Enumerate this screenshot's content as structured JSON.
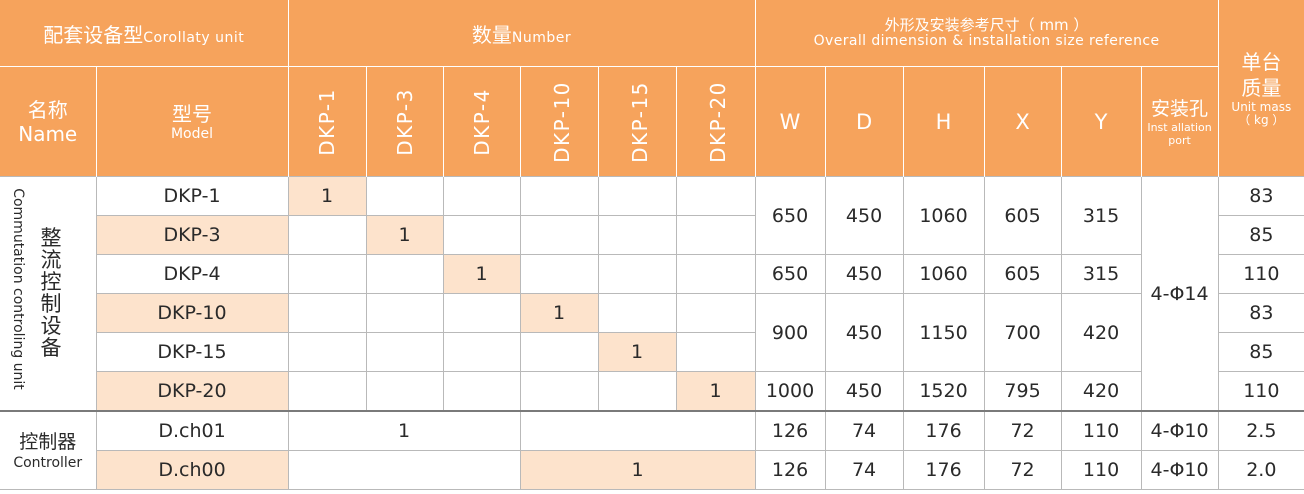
{
  "header": {
    "group_equipment": {
      "cn": "配套设备型",
      "en": "Corollaty unit"
    },
    "group_quantity": {
      "cn": "数量",
      "en": "Number"
    },
    "group_dimension": {
      "cn": "外形及安装参考尺寸（ mm ）",
      "en": "Overall dimension & installation size reference"
    },
    "unit_mass": {
      "cn": "单台质量",
      "en": "Unit mass",
      "unit": "（ kg ）"
    },
    "name": {
      "cn": "名称",
      "en": "Name"
    },
    "model": {
      "cn": "型号",
      "en": "Model"
    },
    "quantity_columns": [
      "DKP-1",
      "DKP-3",
      "DKP-4",
      "DKP-10",
      "DKP-15",
      "DKP-20"
    ],
    "dimension_columns": [
      "W",
      "D",
      "H",
      "X",
      "Y"
    ],
    "install_port": {
      "cn": "安装孔",
      "en": "Inst allation port"
    }
  },
  "category_rectifier": {
    "cn": "整流控制设备",
    "en": "Commutation controling unit"
  },
  "category_controller": {
    "cn": "控制器",
    "en": "Controller"
  },
  "rows": [
    {
      "model": "DKP-1",
      "quantity": "1",
      "mass": "83"
    },
    {
      "model": "DKP-3",
      "quantity": "1",
      "mass": "85"
    },
    {
      "model": "DKP-4",
      "quantity": "1",
      "mass": "110"
    },
    {
      "model": "DKP-10",
      "quantity": "1",
      "mass": "83"
    },
    {
      "model": "DKP-15",
      "quantity": "1",
      "mass": "85"
    },
    {
      "model": "DKP-20",
      "quantity": "1",
      "mass": "110"
    },
    {
      "model": "D.ch01",
      "quantity": "1",
      "mass": "2.5"
    },
    {
      "model": "D.ch00",
      "quantity": "1",
      "mass": "2.0"
    }
  ],
  "dimension_groups": [
    {
      "W": "650",
      "D": "450",
      "H": "1060",
      "X": "605",
      "Y": "315"
    },
    {
      "W": "650",
      "D": "450",
      "H": "1060",
      "X": "605",
      "Y": "315"
    },
    {
      "W": "900",
      "D": "450",
      "H": "1150",
      "X": "700",
      "Y": "420"
    },
    {
      "W": "1000",
      "D": "450",
      "H": "1520",
      "X": "795",
      "Y": "420"
    },
    {
      "W": "126",
      "D": "74",
      "H": "176",
      "X": "72",
      "Y": "110"
    },
    {
      "W": "126",
      "D": "74",
      "H": "176",
      "X": "72",
      "Y": "110"
    }
  ],
  "install_ports": {
    "rectifier": "4-Φ14",
    "controller_1": "4-Φ10",
    "controller_2": "4-Φ10"
  },
  "colors": {
    "header_bg": "#f6a35c",
    "highlight_bg": "#fde3cc",
    "grid_line": "#b9b9b9"
  }
}
